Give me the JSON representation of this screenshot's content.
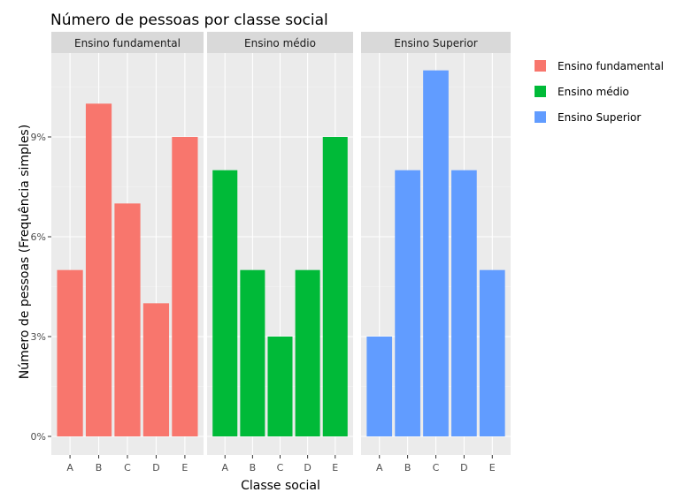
{
  "chart_data": {
    "type": "bar",
    "title": "Número de pessoas por classe social",
    "xlabel": "Classe social",
    "ylabel": "Número de pessoas (Frequência simples)",
    "categories": [
      "A",
      "B",
      "C",
      "D",
      "E"
    ],
    "y_ticks": [
      "0%",
      "3%",
      "6%",
      "9%"
    ],
    "ylim": [
      0,
      12
    ],
    "grid": true,
    "legend_position": "right",
    "series": [
      {
        "name": "Ensino fundamental",
        "color": "#F8766D",
        "values": [
          5,
          10,
          7,
          4,
          9
        ]
      },
      {
        "name": "Ensino médio",
        "color": "#00BA38",
        "values": [
          8,
          5,
          3,
          5,
          9
        ]
      },
      {
        "name": "Ensino Superior",
        "color": "#619CFF",
        "values": [
          3,
          8,
          11,
          8,
          5
        ]
      }
    ]
  }
}
